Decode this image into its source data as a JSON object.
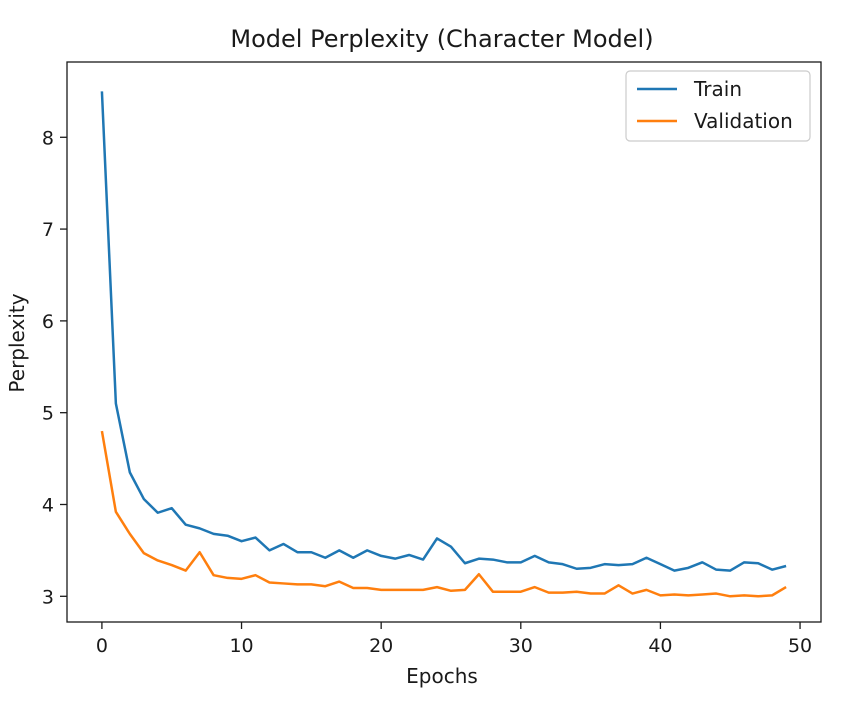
{
  "chart_data": {
    "type": "line",
    "title": "Model Perplexity (Character Model)",
    "xlabel": "Epochs",
    "ylabel": "Perplexity",
    "xlim": [
      -2.5,
      51.5
    ],
    "ylim": [
      2.72,
      8.82
    ],
    "xticks": [
      0,
      10,
      20,
      30,
      40,
      50
    ],
    "yticks": [
      3,
      4,
      5,
      6,
      7,
      8
    ],
    "grid": false,
    "legend_position": "top-right",
    "x": [
      0,
      1,
      2,
      3,
      4,
      5,
      6,
      7,
      8,
      9,
      10,
      11,
      12,
      13,
      14,
      15,
      16,
      17,
      18,
      19,
      20,
      21,
      22,
      23,
      24,
      25,
      26,
      27,
      28,
      29,
      30,
      31,
      32,
      33,
      34,
      35,
      36,
      37,
      38,
      39,
      40,
      41,
      42,
      43,
      44,
      45,
      46,
      47,
      48,
      49
    ],
    "series": [
      {
        "name": "Train",
        "color": "#1f77b4",
        "values": [
          8.5,
          5.1,
          4.35,
          4.06,
          3.91,
          3.96,
          3.78,
          3.74,
          3.68,
          3.66,
          3.6,
          3.64,
          3.5,
          3.57,
          3.48,
          3.48,
          3.42,
          3.5,
          3.42,
          3.5,
          3.44,
          3.41,
          3.45,
          3.4,
          3.63,
          3.54,
          3.36,
          3.41,
          3.4,
          3.37,
          3.37,
          3.44,
          3.37,
          3.35,
          3.3,
          3.31,
          3.35,
          3.34,
          3.35,
          3.42,
          3.35,
          3.28,
          3.31,
          3.37,
          3.29,
          3.28,
          3.37,
          3.36,
          3.29,
          3.33
        ]
      },
      {
        "name": "Validation",
        "color": "#ff7f0e",
        "values": [
          4.8,
          3.92,
          3.68,
          3.47,
          3.39,
          3.34,
          3.28,
          3.48,
          3.23,
          3.2,
          3.19,
          3.23,
          3.15,
          3.14,
          3.13,
          3.13,
          3.11,
          3.16,
          3.09,
          3.09,
          3.07,
          3.07,
          3.07,
          3.07,
          3.1,
          3.06,
          3.07,
          3.24,
          3.05,
          3.05,
          3.05,
          3.1,
          3.04,
          3.04,
          3.05,
          3.03,
          3.03,
          3.12,
          3.03,
          3.07,
          3.01,
          3.02,
          3.01,
          3.02,
          3.03,
          3.0,
          3.01,
          3.0,
          3.01,
          3.1
        ]
      }
    ]
  },
  "style": {
    "axis_color": "#1a1a1a",
    "background": "#ffffff",
    "legend_border": "#cccccc"
  }
}
